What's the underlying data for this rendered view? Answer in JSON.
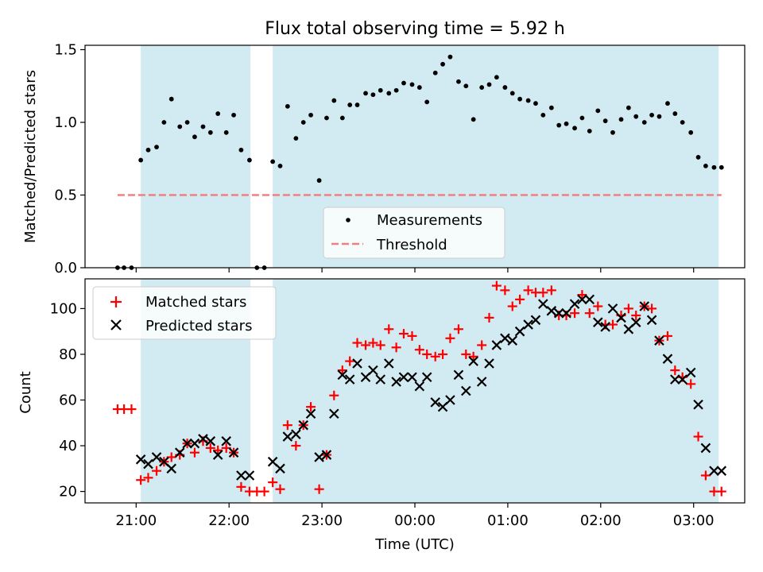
{
  "figure": {
    "title": "Flux total observing time = 5.92 h",
    "xlabel": "Time (UTC)",
    "x_tick_labels": [
      "21:00",
      "22:00",
      "23:00",
      "00:00",
      "01:00",
      "02:00",
      "03:00"
    ]
  },
  "colors": {
    "band": "#add8e6",
    "measurement": "#000000",
    "threshold": "#f08080",
    "matched": "#ff0000",
    "predicted": "#000000"
  },
  "chart_data": [
    {
      "type": "scatter",
      "panel": "top",
      "ylabel": "Matched/Predicted stars",
      "x_unit": "hours since 21:00 UTC",
      "xlim": [
        -0.55,
        6.55
      ],
      "ylim": [
        0,
        1.53
      ],
      "yticks": [
        0,
        0.5,
        1.0,
        1.5
      ],
      "ytick_labels": [
        "0.0",
        "0.5",
        "1.0",
        "1.5"
      ],
      "shaded_intervals": [
        [
          0.05,
          1.23
        ],
        [
          1.47,
          6.27
        ]
      ],
      "legend": {
        "location": "lower-center",
        "items": [
          "Measurements",
          "Threshold"
        ]
      },
      "series": [
        {
          "name": "Measurements",
          "marker": "dot",
          "x": [
            -0.2,
            -0.13,
            -0.05,
            0.05,
            0.13,
            0.22,
            0.3,
            0.38,
            0.47,
            0.55,
            0.63,
            0.72,
            0.8,
            0.88,
            0.97,
            1.05,
            1.13,
            1.22,
            1.3,
            1.38,
            1.47,
            1.55,
            1.63,
            1.72,
            1.8,
            1.88,
            1.97,
            2.05,
            2.13,
            2.22,
            2.3,
            2.38,
            2.47,
            2.55,
            2.63,
            2.72,
            2.8,
            2.88,
            2.97,
            3.05,
            3.13,
            3.22,
            3.3,
            3.38,
            3.47,
            3.55,
            3.63,
            3.72,
            3.8,
            3.88,
            3.97,
            4.05,
            4.13,
            4.22,
            4.3,
            4.38,
            4.47,
            4.55,
            4.63,
            4.72,
            4.8,
            4.88,
            4.97,
            5.05,
            5.13,
            5.22,
            5.3,
            5.38,
            5.47,
            5.55,
            5.63,
            5.72,
            5.8,
            5.88,
            5.97,
            6.05,
            6.13,
            6.22,
            6.3
          ],
          "values": [
            0.0,
            0.0,
            0.0,
            0.74,
            0.81,
            0.83,
            1.0,
            1.16,
            0.97,
            1.0,
            0.9,
            0.97,
            0.93,
            1.06,
            0.93,
            1.05,
            0.81,
            0.74,
            0.0,
            0.0,
            0.73,
            0.7,
            1.11,
            0.89,
            1.0,
            1.05,
            0.6,
            1.03,
            1.15,
            1.03,
            1.12,
            1.12,
            1.2,
            1.19,
            1.22,
            1.2,
            1.22,
            1.27,
            1.26,
            1.24,
            1.14,
            1.34,
            1.4,
            1.45,
            1.28,
            1.25,
            1.02,
            1.24,
            1.26,
            1.31,
            1.24,
            1.2,
            1.16,
            1.15,
            1.13,
            1.05,
            1.1,
            0.98,
            0.99,
            0.96,
            1.03,
            0.94,
            1.08,
            1.01,
            0.93,
            1.02,
            1.1,
            1.04,
            1.0,
            1.05,
            1.04,
            1.13,
            1.06,
            1.0,
            0.93,
            0.76,
            0.7,
            0.69,
            0.69
          ]
        },
        {
          "name": "Threshold",
          "style": "dashed",
          "x": [
            -0.2,
            6.3
          ],
          "values": [
            0.5,
            0.5
          ]
        }
      ]
    },
    {
      "type": "scatter",
      "panel": "bottom",
      "ylabel": "Count",
      "x_unit": "hours since 21:00 UTC",
      "xlim": [
        -0.55,
        6.55
      ],
      "ylim": [
        15,
        113
      ],
      "yticks": [
        20,
        40,
        60,
        80,
        100
      ],
      "ytick_labels": [
        "20",
        "40",
        "60",
        "80",
        "100"
      ],
      "shaded_intervals": [
        [
          0.05,
          1.23
        ],
        [
          1.47,
          6.27
        ]
      ],
      "legend": {
        "location": "top-left",
        "items": [
          "Matched stars",
          "Predicted stars"
        ]
      },
      "x": [
        -0.2,
        -0.13,
        -0.05,
        0.05,
        0.13,
        0.22,
        0.3,
        0.38,
        0.47,
        0.55,
        0.63,
        0.72,
        0.8,
        0.88,
        0.97,
        1.05,
        1.13,
        1.22,
        1.3,
        1.38,
        1.47,
        1.55,
        1.63,
        1.72,
        1.8,
        1.88,
        1.97,
        2.05,
        2.13,
        2.22,
        2.3,
        2.38,
        2.47,
        2.55,
        2.63,
        2.72,
        2.8,
        2.88,
        2.97,
        3.05,
        3.13,
        3.22,
        3.3,
        3.38,
        3.47,
        3.55,
        3.63,
        3.72,
        3.8,
        3.88,
        3.97,
        4.05,
        4.13,
        4.22,
        4.3,
        4.38,
        4.47,
        4.55,
        4.63,
        4.72,
        4.8,
        4.88,
        4.97,
        5.05,
        5.13,
        5.22,
        5.3,
        5.38,
        5.47,
        5.55,
        5.63,
        5.72,
        5.8,
        5.88,
        5.97,
        6.05,
        6.13,
        6.22,
        6.3
      ],
      "series": [
        {
          "name": "Matched stars",
          "marker": "plus",
          "values": [
            56,
            56,
            56,
            25,
            26,
            29,
            33,
            35,
            36,
            41,
            37,
            42,
            39,
            38,
            39,
            37,
            22,
            20,
            20,
            20,
            24,
            21,
            49,
            40,
            49,
            57,
            21,
            36,
            62,
            73,
            77,
            85,
            84,
            85,
            84,
            91,
            83,
            89,
            88,
            82,
            80,
            79,
            80,
            87,
            91,
            80,
            79,
            84,
            96,
            110,
            108,
            101,
            104,
            108,
            107,
            107,
            108,
            97,
            97,
            98,
            106,
            98,
            101,
            93,
            93,
            97,
            100,
            97,
            101,
            100,
            86,
            88,
            73,
            70,
            67,
            44,
            27,
            20,
            20
          ]
        },
        {
          "name": "Predicted stars",
          "marker": "x",
          "values": [
            null,
            null,
            null,
            34,
            32,
            35,
            33,
            30,
            37,
            41,
            41,
            43,
            42,
            36,
            42,
            37,
            27,
            27,
            null,
            null,
            33,
            30,
            44,
            45,
            49,
            54,
            35,
            36,
            54,
            71,
            69,
            76,
            70,
            73,
            69,
            76,
            68,
            70,
            70,
            66,
            70,
            59,
            57,
            60,
            71,
            64,
            77,
            68,
            76,
            84,
            87,
            86,
            90,
            93,
            95,
            102,
            99,
            98,
            98,
            102,
            104,
            104,
            94,
            92,
            100,
            96,
            91,
            94,
            101,
            95,
            86,
            78,
            69,
            69,
            72,
            58,
            39,
            29,
            29
          ]
        }
      ]
    }
  ]
}
